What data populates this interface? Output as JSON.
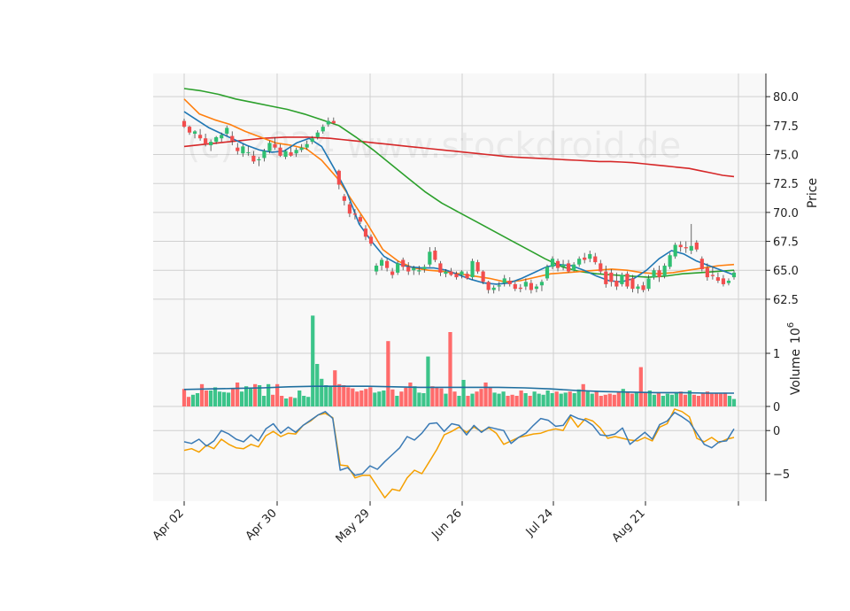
{
  "chart_data": {
    "type": "line",
    "watermark": "(c) 2024 www.stockdroid.de",
    "x_tick_labels": [
      "Apr 02",
      "Apr 30",
      "May 29",
      "Jun 26",
      "Jul 24",
      "Aug 21"
    ],
    "price_panel": {
      "ylabel": "Price",
      "ylim": [
        61.5,
        82.0
      ],
      "y_ticks": [
        "62.5",
        "65.0",
        "67.5",
        "70.0",
        "72.5",
        "75.0",
        "77.5",
        "80.0"
      ],
      "candles": [
        [
          77.9,
          78.1,
          77.3,
          77.4
        ],
        [
          77.4,
          77.5,
          76.7,
          76.9
        ],
        [
          76.8,
          77.1,
          76.4,
          77.0
        ],
        [
          76.7,
          77.2,
          76.2,
          76.4
        ],
        [
          76.4,
          76.8,
          75.7,
          75.9
        ],
        [
          75.8,
          76.3,
          75.3,
          76.1
        ],
        [
          76.1,
          76.6,
          75.9,
          76.5
        ],
        [
          76.4,
          76.9,
          76.1,
          76.7
        ],
        [
          76.8,
          77.5,
          76.6,
          77.3
        ],
        [
          76.6,
          77.0,
          75.8,
          76.2
        ],
        [
          75.6,
          76.0,
          75.0,
          75.3
        ],
        [
          75.1,
          75.9,
          74.8,
          75.7
        ],
        [
          75.2,
          75.7,
          74.9,
          75.2
        ],
        [
          74.9,
          75.3,
          74.2,
          74.4
        ],
        [
          74.5,
          74.8,
          74.0,
          74.6
        ],
        [
          74.7,
          75.5,
          74.4,
          75.3
        ],
        [
          75.3,
          76.2,
          75.1,
          76.0
        ],
        [
          75.9,
          76.5,
          75.4,
          75.6
        ],
        [
          75.6,
          75.9,
          74.8,
          74.9
        ],
        [
          74.8,
          75.4,
          74.6,
          75.3
        ],
        [
          75.2,
          75.6,
          74.8,
          74.9
        ],
        [
          75.1,
          75.6,
          74.8,
          75.4
        ],
        [
          75.4,
          75.9,
          75.2,
          75.6
        ],
        [
          75.6,
          76.2,
          75.4,
          75.9
        ],
        [
          76.1,
          76.6,
          75.9,
          76.4
        ],
        [
          76.5,
          77.1,
          76.3,
          76.9
        ],
        [
          77.0,
          77.6,
          76.8,
          77.4
        ],
        [
          77.6,
          78.2,
          77.4,
          77.9
        ],
        [
          77.9,
          78.2,
          77.6,
          77.7
        ],
        [
          73.6,
          73.7,
          72.0,
          72.4
        ],
        [
          71.4,
          71.6,
          70.6,
          71.0
        ],
        [
          70.7,
          70.9,
          69.6,
          69.9
        ],
        [
          69.9,
          70.3,
          69.4,
          69.8
        ],
        [
          69.6,
          69.8,
          69.0,
          69.2
        ],
        [
          68.6,
          68.9,
          67.6,
          67.9
        ],
        [
          67.9,
          68.1,
          67.1,
          67.3
        ],
        [
          64.9,
          65.6,
          64.6,
          65.4
        ],
        [
          65.4,
          66.1,
          65.0,
          65.9
        ],
        [
          65.8,
          66.0,
          64.9,
          65.2
        ],
        [
          64.9,
          65.2,
          64.3,
          64.6
        ],
        [
          64.8,
          65.8,
          64.6,
          65.6
        ],
        [
          65.9,
          66.1,
          65.0,
          65.3
        ],
        [
          65.3,
          65.7,
          64.6,
          64.9
        ],
        [
          65.0,
          65.4,
          64.6,
          65.2
        ],
        [
          64.9,
          65.4,
          64.6,
          65.0
        ],
        [
          65.1,
          65.5,
          64.8,
          65.3
        ],
        [
          65.5,
          67.0,
          65.3,
          66.6
        ],
        [
          66.7,
          67.0,
          65.7,
          65.9
        ],
        [
          65.6,
          65.8,
          64.5,
          64.8
        ],
        [
          64.7,
          65.1,
          64.4,
          64.9
        ],
        [
          64.9,
          65.2,
          64.5,
          64.6
        ],
        [
          64.7,
          64.9,
          64.2,
          64.4
        ],
        [
          64.6,
          65.0,
          64.3,
          64.9
        ],
        [
          64.7,
          64.9,
          64.2,
          64.3
        ],
        [
          64.4,
          66.0,
          64.2,
          65.8
        ],
        [
          65.7,
          65.9,
          64.7,
          64.9
        ],
        [
          64.9,
          65.0,
          63.8,
          64.0
        ],
        [
          64.0,
          64.1,
          63.0,
          63.3
        ],
        [
          63.3,
          63.7,
          63.0,
          63.5
        ],
        [
          63.6,
          64.0,
          63.2,
          63.7
        ],
        [
          63.9,
          64.6,
          63.6,
          64.3
        ],
        [
          64.1,
          64.4,
          63.6,
          63.8
        ],
        [
          63.8,
          64.0,
          63.2,
          63.4
        ],
        [
          63.5,
          63.8,
          63.1,
          63.4
        ],
        [
          63.6,
          64.3,
          63.3,
          64.0
        ],
        [
          63.9,
          64.2,
          63.0,
          63.3
        ],
        [
          63.4,
          63.8,
          63.1,
          63.6
        ],
        [
          63.7,
          64.2,
          63.2,
          64.0
        ],
        [
          64.3,
          65.5,
          64.1,
          65.3
        ],
        [
          65.3,
          66.2,
          65.1,
          66.0
        ],
        [
          65.8,
          66.0,
          64.9,
          65.2
        ],
        [
          65.3,
          65.9,
          65.0,
          65.5
        ],
        [
          65.6,
          65.9,
          64.8,
          64.9
        ],
        [
          65.0,
          65.7,
          64.9,
          65.5
        ],
        [
          65.5,
          66.2,
          65.3,
          66.0
        ],
        [
          66.1,
          66.5,
          65.6,
          65.9
        ],
        [
          66.0,
          66.7,
          65.7,
          66.4
        ],
        [
          66.2,
          66.5,
          65.5,
          65.7
        ],
        [
          65.6,
          65.9,
          64.7,
          64.9
        ],
        [
          64.9,
          65.4,
          63.5,
          63.8
        ],
        [
          64.8,
          65.1,
          63.6,
          64.0
        ],
        [
          64.1,
          64.8,
          63.3,
          63.6
        ],
        [
          63.8,
          64.8,
          63.6,
          64.6
        ],
        [
          64.7,
          64.9,
          63.4,
          63.6
        ],
        [
          64.3,
          64.6,
          63.1,
          63.4
        ],
        [
          63.4,
          63.8,
          63.0,
          63.6
        ],
        [
          63.7,
          64.0,
          63.1,
          63.3
        ],
        [
          63.4,
          64.6,
          63.2,
          64.3
        ],
        [
          64.4,
          65.2,
          64.2,
          65.0
        ],
        [
          65.0,
          65.4,
          64.0,
          64.4
        ],
        [
          64.5,
          65.6,
          64.3,
          65.4
        ],
        [
          65.3,
          66.5,
          65.1,
          66.3
        ],
        [
          66.2,
          67.4,
          66.0,
          67.2
        ],
        [
          67.2,
          67.5,
          66.6,
          67.0
        ],
        [
          67.0,
          67.5,
          66.5,
          66.9
        ],
        [
          66.7,
          69.0,
          66.4,
          67.1
        ],
        [
          67.4,
          67.6,
          66.6,
          66.8
        ],
        [
          66.0,
          66.2,
          64.9,
          65.1
        ],
        [
          65.2,
          65.6,
          64.1,
          64.4
        ],
        [
          64.6,
          65.3,
          64.2,
          64.5
        ],
        [
          64.4,
          64.8,
          63.9,
          64.1
        ],
        [
          64.3,
          64.6,
          63.6,
          63.8
        ],
        [
          63.9,
          64.3,
          63.7,
          64.1
        ],
        [
          64.4,
          65.0,
          64.2,
          64.8
        ]
      ],
      "ma_red": [
        75.7,
        75.8,
        75.9,
        76.0,
        76.1,
        76.2,
        76.3,
        76.4,
        76.45,
        76.5,
        76.5,
        76.5,
        76.45,
        76.4,
        76.3,
        76.2,
        76.1,
        76.0,
        75.9,
        75.8,
        75.7,
        75.6,
        75.5,
        75.4,
        75.3,
        75.2,
        75.1,
        75.0,
        74.9,
        74.8,
        74.75,
        74.7,
        74.65,
        74.6,
        74.55,
        74.5,
        74.45,
        74.4,
        74.4,
        74.35,
        74.3,
        74.2,
        74.1,
        74.0,
        73.9,
        73.8,
        73.6,
        73.4,
        73.2,
        73.1
      ],
      "ma_green": [
        80.7,
        80.5,
        80.2,
        79.8,
        79.5,
        79.2,
        78.9,
        78.5,
        78.0,
        77.5,
        76.5,
        75.4,
        74.2,
        73.0,
        71.8,
        70.8,
        70.0,
        69.2,
        68.4,
        67.6,
        66.8,
        66.0,
        65.3,
        64.9,
        64.7,
        64.6,
        64.5,
        64.4,
        64.5,
        64.7,
        64.8,
        64.9,
        65.0
      ],
      "ma_orange": [
        79.8,
        78.5,
        78.0,
        77.6,
        77.0,
        76.5,
        76.0,
        75.8,
        75.5,
        74.5,
        73.0,
        71.0,
        69.0,
        66.8,
        65.8,
        65.2,
        65.0,
        64.9,
        64.7,
        64.5,
        64.3,
        64.0,
        64.1,
        64.4,
        64.7,
        64.8,
        64.9,
        65.0,
        65.1,
        65.0,
        64.8,
        64.7,
        64.8,
        65.0,
        65.2,
        65.4,
        65.5
      ],
      "ma_blue": [
        78.7,
        78.0,
        77.3,
        76.8,
        76.3,
        75.8,
        75.4,
        75.2,
        75.3,
        76.0,
        76.4,
        75.7,
        73.8,
        71.8,
        69.0,
        67.5,
        66.2,
        65.6,
        65.3,
        65.2,
        65.2,
        65.0,
        64.6,
        64.2,
        63.9,
        63.8,
        63.9,
        64.3,
        64.8,
        65.3,
        65.5,
        65.4,
        65.0,
        64.5,
        64.1,
        64.0,
        64.3,
        65.0,
        66.0,
        66.7,
        66.4,
        65.8,
        65.4,
        65.0,
        64.6
      ]
    },
    "volume_panel": {
      "ylabel": "Volume",
      "scale_label": "10",
      "scale_exp": "6",
      "ylim": [
        0,
        1.8
      ],
      "y_ticks": [
        "0",
        "1"
      ],
      "volumes": [
        0.33,
        0.18,
        0.22,
        0.25,
        0.42,
        0.3,
        0.3,
        0.36,
        0.28,
        0.27,
        0.26,
        0.35,
        0.45,
        0.28,
        0.38,
        0.35,
        0.42,
        0.4,
        0.2,
        0.42,
        0.22,
        0.42,
        0.2,
        0.15,
        0.18,
        0.16,
        0.3,
        0.2,
        0.18,
        1.71,
        0.8,
        0.52,
        0.4,
        0.38,
        0.68,
        0.42,
        0.4,
        0.36,
        0.34,
        0.28,
        0.3,
        0.33,
        0.36,
        0.26,
        0.28,
        0.3,
        1.23,
        0.32,
        0.2,
        0.28,
        0.35,
        0.45,
        0.38,
        0.26,
        0.25,
        0.94,
        0.38,
        0.36,
        0.34,
        0.24,
        1.4,
        0.28,
        0.2,
        0.5,
        0.2,
        0.24,
        0.28,
        0.33,
        0.45,
        0.35,
        0.26,
        0.24,
        0.28,
        0.2,
        0.22,
        0.2,
        0.3,
        0.25,
        0.2,
        0.28,
        0.24,
        0.22,
        0.3,
        0.25,
        0.28,
        0.24,
        0.26,
        0.28,
        0.25,
        0.32,
        0.42,
        0.28,
        0.24,
        0.28,
        0.2,
        0.22,
        0.24,
        0.22,
        0.28,
        0.33,
        0.27,
        0.24,
        0.26,
        0.74,
        0.26,
        0.3,
        0.22,
        0.26,
        0.2,
        0.24,
        0.22,
        0.26,
        0.28,
        0.22,
        0.3,
        0.22,
        0.2,
        0.24,
        0.28,
        0.24,
        0.25,
        0.24,
        0.26,
        0.2,
        0.14
      ],
      "avg_volume": [
        0.32,
        0.33,
        0.34,
        0.35,
        0.37,
        0.38,
        0.38,
        0.38,
        0.37,
        0.36,
        0.36,
        0.36,
        0.36,
        0.35,
        0.33,
        0.3,
        0.28,
        0.27,
        0.26,
        0.26,
        0.25,
        0.25
      ]
    },
    "macd_panel": {
      "ylim": [
        -8.2,
        2.8
      ],
      "y_ticks": [
        "0",
        "−5"
      ],
      "macd_blue": [
        -1.3,
        -1.5,
        -1.0,
        -1.8,
        -1.2,
        0.0,
        -0.4,
        -1.0,
        -1.3,
        -0.5,
        -1.2,
        0.2,
        0.8,
        -0.3,
        0.4,
        -0.2,
        0.6,
        1.2,
        1.8,
        2.2,
        1.4,
        -4.6,
        -4.3,
        -5.2,
        -5.0,
        -4.1,
        -4.5,
        -3.6,
        -2.8,
        -2.0,
        -0.7,
        -1.1,
        -0.3,
        0.8,
        0.9,
        -0.1,
        0.8,
        0.6,
        -0.5,
        0.6,
        -0.2,
        0.4,
        0.2,
        0.0,
        -1.5,
        -0.8,
        -0.3,
        0.6,
        1.4,
        1.2,
        0.5,
        0.6,
        1.8,
        1.4,
        1.2,
        0.6,
        -0.5,
        -0.6,
        -0.4,
        0.3,
        -1.6,
        -0.9,
        -0.2,
        -1.0,
        0.7,
        1.1,
        2.1,
        1.6,
        1.0,
        -0.3,
        -1.6,
        -2.0,
        -1.3,
        -1.2,
        0.2
      ],
      "signal_orange": [
        -2.3,
        -2.1,
        -2.5,
        -1.7,
        -2.1,
        -1.0,
        -1.6,
        -2.0,
        -2.1,
        -1.6,
        -1.9,
        -0.6,
        -0.1,
        -0.7,
        -0.3,
        -0.4,
        0.6,
        1.1,
        1.8,
        2.0,
        1.5,
        -4.0,
        -4.1,
        -5.5,
        -5.2,
        -5.2,
        -6.5,
        -7.8,
        -6.8,
        -7.0,
        -5.5,
        -4.6,
        -5.0,
        -3.6,
        -2.2,
        -0.5,
        -0.1,
        0.4,
        -0.2,
        0.4,
        -0.1,
        0.3,
        -0.3,
        -1.6,
        -1.2,
        -0.8,
        -0.6,
        -0.4,
        -0.3,
        0.0,
        0.2,
        0.0,
        1.6,
        0.4,
        1.4,
        1.1,
        0.3,
        -0.9,
        -0.7,
        -0.9,
        -1.1,
        -1.2,
        -0.8,
        -1.2,
        0.4,
        0.8,
        2.5,
        2.2,
        1.6,
        -0.9,
        -1.3,
        -0.8,
        -1.4,
        -1.0,
        -0.8
      ]
    }
  }
}
